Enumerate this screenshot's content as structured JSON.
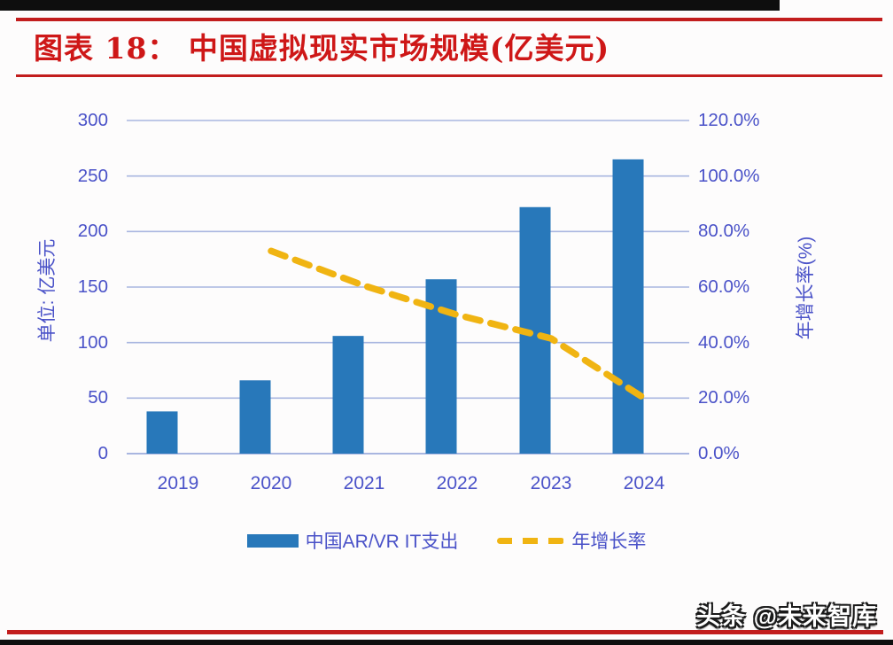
{
  "page": {
    "title": "图表 18： 中国虚拟现实市场规模(亿美元)",
    "watermark": "头条 @未来智库"
  },
  "colors": {
    "bar": "#2878ba",
    "line": "#f0b412",
    "axis_text": "#4a52c8",
    "grid": "#a9b6e0",
    "title_red": "#ce1717",
    "rule_red": "#c21d1d",
    "black_bar": "#0e0e0e"
  },
  "chart_data": {
    "type": "bar",
    "subtype": "combo-bar-line-dual-axis",
    "title": "中国虚拟现实市场规模(亿美元)",
    "categories": [
      "2019",
      "2020",
      "2021",
      "2022",
      "2023",
      "2024"
    ],
    "series": [
      {
        "name": "中国AR/VR IT支出",
        "type": "bar",
        "axis": "left",
        "values": [
          38,
          66,
          106,
          157,
          222,
          265
        ]
      },
      {
        "name": "年增长率",
        "type": "dashed-line",
        "axis": "right",
        "unit": "%",
        "values": [
          null,
          73,
          60.5,
          50,
          41.5,
          20
        ]
      }
    ],
    "left_axis": {
      "title": "单位: 亿美元",
      "min": 0,
      "max": 300,
      "step": 50,
      "ticks": [
        "300",
        "250",
        "200",
        "150",
        "100",
        "50",
        "0"
      ]
    },
    "right_axis": {
      "title": "年增长率(%)",
      "min": 0,
      "max": 120,
      "step": 20,
      "ticks": [
        "120.0%",
        "100.0%",
        "80.0%",
        "60.0%",
        "40.0%",
        "20.0%",
        "0.0%"
      ]
    },
    "grid": true,
    "legend_position": "bottom",
    "legend": [
      {
        "label": "中国AR/VR IT支出",
        "swatch": "bar"
      },
      {
        "label": "年增长率",
        "swatch": "dashed-line"
      }
    ]
  }
}
